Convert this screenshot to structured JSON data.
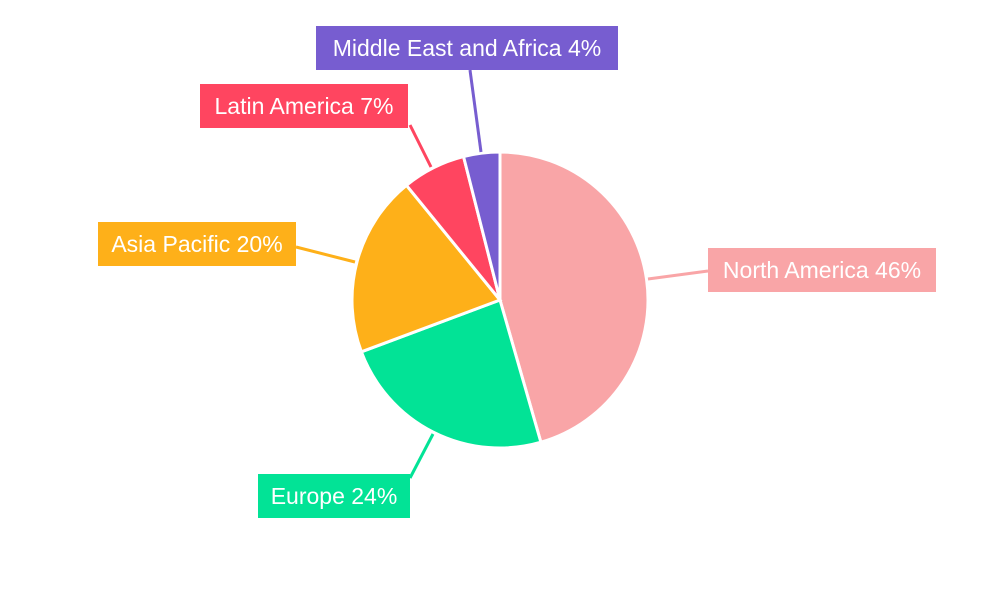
{
  "chart_data": {
    "type": "pie",
    "categories": [
      "North America",
      "Europe",
      "Asia Pacific",
      "Latin America",
      "Middle East and Africa"
    ],
    "values": [
      46,
      24,
      20,
      7,
      4
    ],
    "labels": [
      "North America 46%",
      "Europe 24%",
      "Asia Pacific 20%",
      "Latin America 7%",
      "Middle East and Africa 4%"
    ],
    "colors": [
      "#f9a5a7",
      "#02e396",
      "#feb019",
      "#ff4560",
      "#775dd0"
    ],
    "start_angle": "top, clockwise",
    "legend": "none"
  }
}
